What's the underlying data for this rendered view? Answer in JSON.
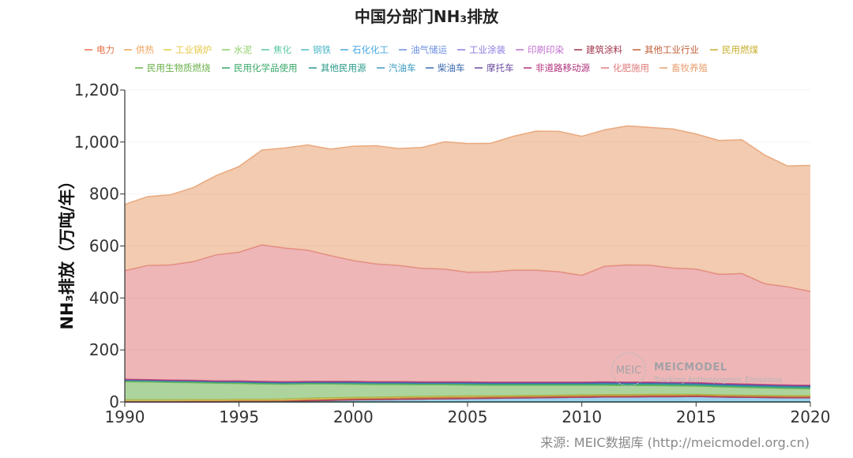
{
  "chart_data": {
    "type": "area",
    "stacked": true,
    "title": "中国分部门NH₃排放",
    "ylabel": "NH₃排放（万吨/年）",
    "xlabel": "",
    "xlim": [
      1990,
      2020
    ],
    "ylim": [
      0,
      1200
    ],
    "x_ticks": [
      "1990",
      "1995",
      "2000",
      "2005",
      "2010",
      "2015",
      "2020"
    ],
    "y_ticks": [
      "0",
      "200",
      "400",
      "600",
      "800",
      "1,000",
      "1,200"
    ],
    "x": [
      1990,
      1991,
      1992,
      1993,
      1994,
      1995,
      1996,
      1997,
      1998,
      1999,
      2000,
      2001,
      2002,
      2003,
      2004,
      2005,
      2006,
      2007,
      2008,
      2009,
      2010,
      2011,
      2012,
      2013,
      2014,
      2015,
      2016,
      2017,
      2018,
      2019,
      2020
    ],
    "series": [
      {
        "name": "电力",
        "color": "#e8724a",
        "values": [
          0,
          0,
          0,
          0,
          0,
          0,
          0,
          0,
          0,
          0,
          0,
          0,
          0,
          0,
          0,
          0,
          0,
          0,
          0,
          0,
          0,
          0,
          0,
          0,
          0,
          0,
          0,
          0,
          0,
          0,
          0
        ]
      },
      {
        "name": "供热",
        "color": "#f0a35a",
        "values": [
          0,
          0,
          0,
          0,
          0,
          0,
          0,
          0,
          0,
          0,
          0,
          0,
          0,
          0,
          0,
          0,
          0,
          0,
          0,
          0,
          0,
          0,
          0,
          0,
          0,
          0,
          0,
          0,
          0,
          0,
          0
        ]
      },
      {
        "name": "工业锅炉",
        "color": "#e6c84a",
        "values": [
          0,
          0,
          0,
          0,
          0,
          0,
          0,
          0,
          0,
          0,
          0,
          0,
          0,
          0,
          0,
          0,
          0,
          0,
          0,
          0,
          0,
          0,
          0,
          0,
          0,
          0,
          0,
          0,
          0,
          0,
          0
        ]
      },
      {
        "name": "水泥",
        "color": "#8fcf6a",
        "values": [
          0,
          0,
          0,
          0,
          0,
          0,
          0,
          0,
          0,
          0,
          0,
          0,
          0,
          0,
          0,
          0,
          0,
          0,
          0,
          0,
          0,
          0,
          0,
          0,
          0,
          0,
          0,
          0,
          0,
          0,
          0
        ]
      },
      {
        "name": "焦化",
        "color": "#5cc8a0",
        "values": [
          0,
          0,
          0,
          0,
          0,
          0,
          0,
          0,
          0,
          0,
          0,
          0,
          0,
          0,
          0,
          0,
          0,
          0,
          0,
          0,
          0,
          0,
          0,
          0,
          0,
          0,
          0,
          0,
          0,
          0,
          0
        ]
      },
      {
        "name": "钢铁",
        "color": "#4fb8c8",
        "values": [
          0,
          0,
          0,
          0,
          0,
          0,
          0,
          0,
          0,
          0,
          0,
          0,
          0,
          0,
          0,
          0,
          0,
          0,
          0,
          0,
          0,
          0,
          0,
          0,
          0,
          0,
          0,
          0,
          0,
          0,
          0
        ]
      },
      {
        "name": "石化化工",
        "color": "#4aa8e0",
        "values": [
          0,
          0,
          0,
          0,
          0,
          1,
          1,
          2,
          4,
          6,
          8,
          9,
          10,
          11,
          12,
          13,
          14,
          15,
          16,
          17,
          18,
          19,
          19,
          20,
          20,
          21,
          19,
          18,
          17,
          16,
          16
        ]
      },
      {
        "name": "油气储运",
        "color": "#6a8ee0",
        "values": [
          0,
          0,
          0,
          0,
          0,
          0,
          0,
          0,
          0,
          0,
          0,
          0,
          0,
          0,
          0,
          0,
          0,
          0,
          0,
          0,
          0,
          0,
          0,
          0,
          0,
          0,
          0,
          0,
          0,
          0,
          0
        ]
      },
      {
        "name": "工业涂装",
        "color": "#8a7ae0",
        "values": [
          0,
          0,
          0,
          0,
          0,
          0,
          0,
          0,
          0,
          0,
          0,
          0,
          0,
          0,
          0,
          0,
          0,
          0,
          0,
          0,
          0,
          0,
          0,
          0,
          0,
          0,
          0,
          0,
          0,
          0,
          0
        ]
      },
      {
        "name": "印刷印染",
        "color": "#c070d0",
        "values": [
          0,
          0,
          0,
          0,
          0,
          0,
          0,
          0,
          0,
          0,
          0,
          0,
          0,
          0,
          0,
          0,
          0,
          0,
          0,
          0,
          0,
          0,
          0,
          0,
          0,
          0,
          0,
          0,
          0,
          0,
          0
        ]
      },
      {
        "name": "建筑涂料",
        "color": "#a0304a",
        "values": [
          0,
          0,
          0,
          0,
          0,
          0,
          0,
          0,
          0,
          0,
          0,
          0,
          0,
          0,
          0,
          0,
          0,
          0,
          0,
          0,
          0,
          0,
          0,
          0,
          0,
          0,
          0,
          0,
          0,
          0,
          0
        ]
      },
      {
        "name": "其他工业行业",
        "color": "#c0603a",
        "values": [
          2,
          2,
          2,
          3,
          3,
          3,
          3,
          3,
          4,
          4,
          4,
          4,
          5,
          5,
          5,
          5,
          5,
          5,
          5,
          5,
          5,
          5,
          5,
          5,
          5,
          5,
          5,
          5,
          5,
          5,
          5
        ]
      },
      {
        "name": "民用燃煤",
        "color": "#c8b030",
        "values": [
          6,
          6,
          6,
          6,
          6,
          6,
          6,
          6,
          6,
          6,
          5,
          5,
          5,
          5,
          5,
          5,
          4,
          4,
          4,
          4,
          4,
          4,
          4,
          4,
          4,
          3,
          3,
          3,
          3,
          3,
          3
        ]
      },
      {
        "name": "民用生物质燃烧",
        "color": "#6ab04a",
        "values": [
          70,
          69,
          67,
          65,
          63,
          61,
          59,
          57,
          55,
          53,
          51,
          49,
          47,
          45,
          44,
          42,
          41,
          40,
          39,
          38,
          37,
          36,
          35,
          34,
          33,
          32,
          31,
          30,
          29,
          28,
          27
        ]
      },
      {
        "name": "民用化学品使用",
        "color": "#3aa86a",
        "values": [
          4,
          4,
          4,
          4,
          4,
          4,
          4,
          4,
          4,
          4,
          4,
          4,
          4,
          4,
          4,
          4,
          4,
          4,
          4,
          4,
          4,
          4,
          4,
          4,
          4,
          4,
          4,
          4,
          4,
          4,
          4
        ]
      },
      {
        "name": "其他民用源",
        "color": "#2a9a8a",
        "values": [
          2,
          2,
          2,
          2,
          2,
          2,
          2,
          2,
          2,
          2,
          2,
          2,
          2,
          2,
          2,
          2,
          2,
          2,
          2,
          2,
          2,
          2,
          2,
          2,
          2,
          2,
          2,
          2,
          2,
          2,
          2
        ]
      },
      {
        "name": "汽油车",
        "color": "#3a9ac0",
        "values": [
          0,
          0,
          0,
          0,
          0,
          0,
          0,
          0,
          0,
          0,
          1,
          1,
          1,
          1,
          1,
          2,
          2,
          2,
          2,
          2,
          2,
          3,
          3,
          3,
          3,
          3,
          3,
          3,
          3,
          3,
          3
        ]
      },
      {
        "name": "柴油车",
        "color": "#3a6ab0",
        "values": [
          0,
          0,
          0,
          0,
          0,
          0,
          0,
          0,
          0,
          0,
          0,
          0,
          0,
          0,
          0,
          0,
          0,
          0,
          0,
          0,
          0,
          0,
          0,
          0,
          0,
          0,
          0,
          0,
          0,
          0,
          0
        ]
      },
      {
        "name": "摩托车",
        "color": "#6a4aa0",
        "values": [
          3,
          3,
          3,
          3,
          3,
          4,
          4,
          4,
          4,
          4,
          4,
          4,
          4,
          4,
          4,
          4,
          4,
          4,
          4,
          4,
          4,
          4,
          4,
          4,
          4,
          4,
          4,
          4,
          4,
          4,
          4
        ]
      },
      {
        "name": "非道路移动源",
        "color": "#b0307a",
        "values": [
          0,
          0,
          0,
          0,
          0,
          0,
          0,
          0,
          0,
          0,
          0,
          0,
          0,
          0,
          0,
          0,
          0,
          0,
          0,
          0,
          0,
          0,
          0,
          0,
          0,
          0,
          0,
          0,
          0,
          0,
          0
        ]
      },
      {
        "name": "化肥施用",
        "color": "#e07a7a",
        "values": [
          418,
          439,
          443,
          457,
          485,
          495,
          525,
          514,
          505,
          484,
          465,
          453,
          447,
          437,
          434,
          422,
          424,
          431,
          431,
          425,
          411,
          445,
          451,
          450,
          440,
          437,
          420,
          425,
          388,
          378,
          361
        ]
      },
      {
        "name": "畜牧养殖",
        "color": "#e8a070",
        "values": [
          255,
          265,
          270,
          285,
          305,
          330,
          365,
          385,
          405,
          410,
          440,
          455,
          450,
          465,
          490,
          495,
          495,
          515,
          535,
          540,
          535,
          525,
          535,
          530,
          535,
          520,
          515,
          515,
          495,
          465,
          485
        ]
      }
    ]
  },
  "source_text": "来源: MEIC数据库 (http://meicmodel.org.cn)",
  "watermark": {
    "logo_text": "MEIC",
    "title": "MEICMODEL",
    "subtitle": "Tracking Anthropogenic Emissions"
  }
}
